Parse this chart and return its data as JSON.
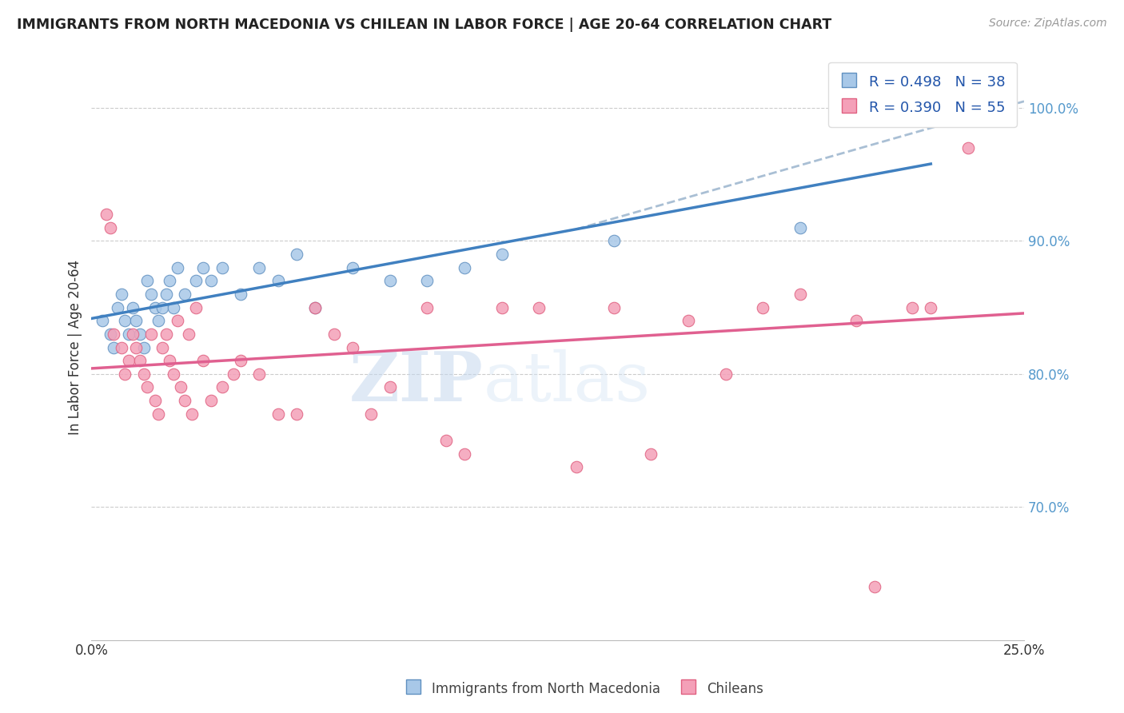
{
  "title": "IMMIGRANTS FROM NORTH MACEDONIA VS CHILEAN IN LABOR FORCE | AGE 20-64 CORRELATION CHART",
  "source": "Source: ZipAtlas.com",
  "ylabel": "In Labor Force | Age 20-64",
  "legend_label1": "Immigrants from North Macedonia",
  "legend_label2": "Chileans",
  "R1": "0.498",
  "N1": "38",
  "R2": "0.390",
  "N2": "55",
  "color_blue": "#a8c8e8",
  "color_pink": "#f4a0b8",
  "color_blue_edge": "#6090c0",
  "color_pink_edge": "#e06080",
  "color_trend_blue": "#4080c0",
  "color_trend_pink": "#e06090",
  "color_dashed": "#a0b8d0",
  "background": "#ffffff",
  "grid_color": "#cccccc",
  "watermark_zip": "ZIP",
  "watermark_atlas": "atlas",
  "xmin": 0.0,
  "xmax": 25.0,
  "ymin": 60.0,
  "ymax": 104.0,
  "yticks": [
    70.0,
    80.0,
    90.0,
    100.0
  ],
  "nm_x": [
    0.3,
    0.5,
    0.6,
    0.7,
    0.8,
    0.9,
    1.0,
    1.1,
    1.2,
    1.3,
    1.4,
    1.5,
    1.6,
    1.7,
    1.8,
    1.9,
    2.0,
    2.1,
    2.2,
    2.3,
    2.5,
    2.8,
    3.0,
    3.2,
    3.5,
    4.0,
    4.5,
    5.0,
    5.5,
    6.0,
    7.0,
    8.0,
    9.0,
    10.0,
    11.0,
    14.0,
    19.0,
    22.5
  ],
  "nm_y": [
    84,
    83,
    82,
    85,
    86,
    84,
    83,
    85,
    84,
    83,
    82,
    87,
    86,
    85,
    84,
    85,
    86,
    87,
    85,
    88,
    86,
    87,
    88,
    87,
    88,
    86,
    88,
    87,
    89,
    85,
    88,
    87,
    87,
    88,
    89,
    90,
    91,
    100
  ],
  "ch_x": [
    0.4,
    0.5,
    0.6,
    0.8,
    0.9,
    1.0,
    1.1,
    1.2,
    1.3,
    1.4,
    1.5,
    1.6,
    1.7,
    1.8,
    1.9,
    2.0,
    2.1,
    2.2,
    2.3,
    2.4,
    2.5,
    2.6,
    2.7,
    2.8,
    3.0,
    3.2,
    3.5,
    3.8,
    4.0,
    4.5,
    5.0,
    5.5,
    6.0,
    6.5,
    7.0,
    7.5,
    8.0,
    9.0,
    9.5,
    10.0,
    11.0,
    12.0,
    13.0,
    14.0,
    15.0,
    16.0,
    17.0,
    18.0,
    19.0,
    20.5,
    21.0,
    22.0,
    22.5,
    23.5,
    24.5
  ],
  "ch_y": [
    92,
    91,
    83,
    82,
    80,
    81,
    83,
    82,
    81,
    80,
    79,
    83,
    78,
    77,
    82,
    83,
    81,
    80,
    84,
    79,
    78,
    83,
    77,
    85,
    81,
    78,
    79,
    80,
    81,
    80,
    77,
    77,
    85,
    83,
    82,
    77,
    79,
    85,
    75,
    74,
    85,
    85,
    73,
    85,
    74,
    84,
    80,
    85,
    86,
    84,
    64,
    85,
    85,
    97,
    101
  ],
  "nm_trend_x0": 0.0,
  "nm_trend_x1": 22.5,
  "ch_trend_x0": 0.0,
  "ch_trend_x1": 25.0,
  "dashed_start_x": 13.0,
  "dashed_end_x": 25.0
}
